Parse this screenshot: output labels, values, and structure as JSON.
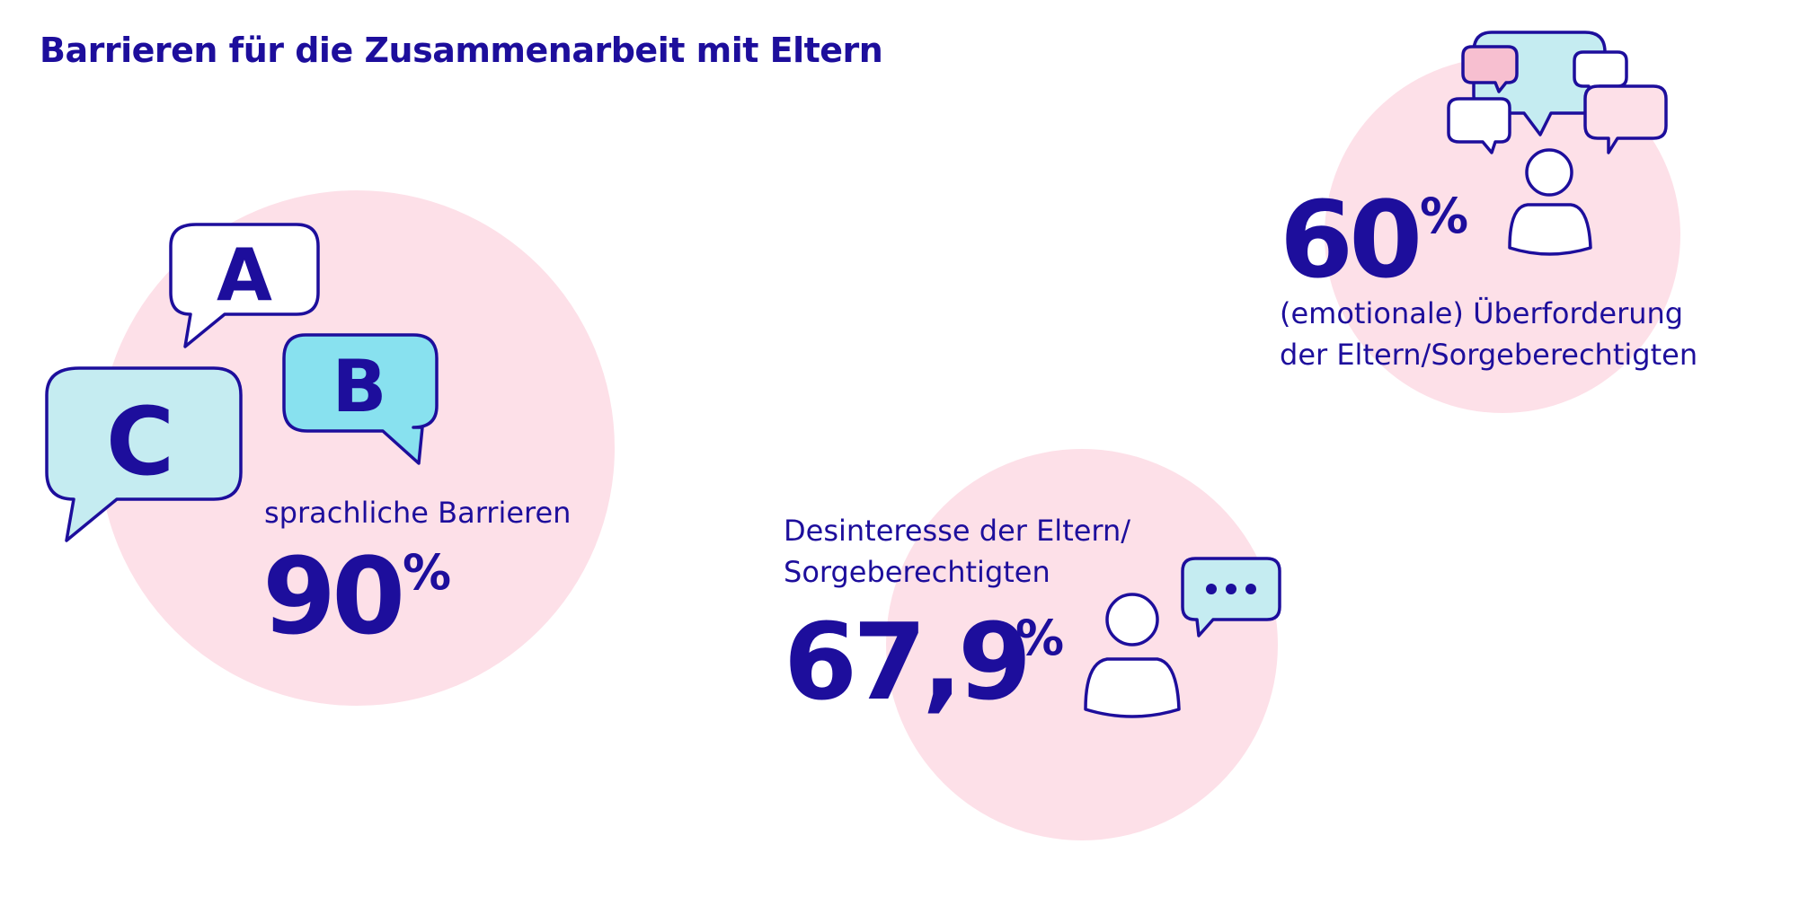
{
  "title": "Barrieren für die Zusammenarbeit mit Eltern",
  "stats": {
    "language": {
      "label": "sprachliche Barrieren",
      "value": "90",
      "unit": "%",
      "bubble_letters": [
        "A",
        "B",
        "C"
      ],
      "icon": "speech-bubbles-letters-icon"
    },
    "overload": {
      "value": "60",
      "unit": "%",
      "label_line1": "(emotionale) Überforderung",
      "label_line2": "der Eltern/Sorgeberechtigten",
      "icon": "person-with-many-speech-bubbles-icon"
    },
    "disinterest": {
      "label_line1": "Desinteresse der Eltern/",
      "label_line2": "Sorgeberechtigten",
      "value": "67,9",
      "unit": "%",
      "icon": "person-with-ellipsis-bubble-icon"
    }
  },
  "colors": {
    "text": "#1d0e9c",
    "circle": "#fde0e8",
    "bubble_light_blue": "#c5ecf1",
    "bubble_blue": "#88e1ef",
    "bubble_pink": "#f7bfd0",
    "white": "#ffffff"
  }
}
